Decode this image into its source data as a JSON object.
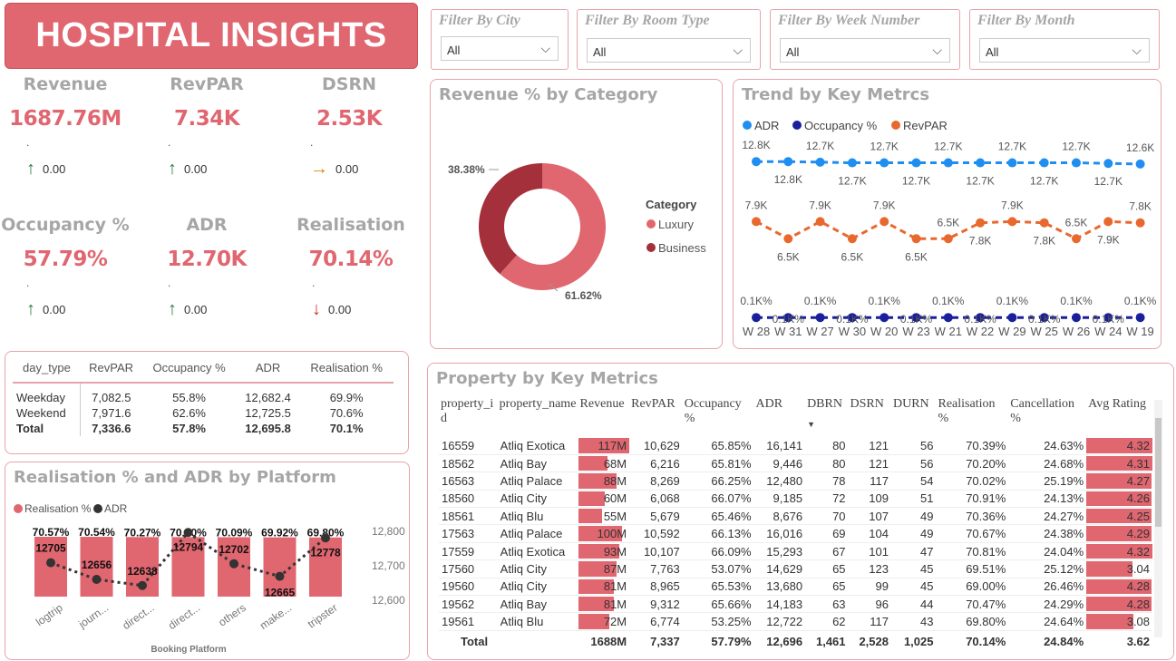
{
  "header": {
    "title": "HOSPITAL INSIGHTS"
  },
  "colors": {
    "accent": "#e06670",
    "dark": "#a3303b",
    "up": "#2e7d4a",
    "flat": "#d68a1e",
    "down": "#d32f2f",
    "adr": "#1f8ef1",
    "occupancy": "#1a1f9c",
    "revpar": "#e8682e"
  },
  "kpis": [
    {
      "label": "Revenue",
      "value": "1687.76M",
      "dot": ".",
      "trend": "up",
      "trend_icon": "arrow-up-icon",
      "change": "0.00"
    },
    {
      "label": "RevPAR",
      "value": "7.34K",
      "dot": ".",
      "trend": "up",
      "trend_icon": "arrow-up-icon",
      "change": "0.00"
    },
    {
      "label": "DSRN",
      "value": "2.53K",
      "dot": ".",
      "trend": "flat",
      "trend_icon": "arrow-right-icon",
      "change": "0.00"
    },
    {
      "label": "Occupancy %",
      "value": "57.79%",
      "dot": ".",
      "trend": "up",
      "trend_icon": "arrow-up-icon",
      "change": "0.00"
    },
    {
      "label": "ADR",
      "value": "12.70K",
      "dot": ".",
      "trend": "up",
      "trend_icon": "arrow-up-icon",
      "change": "0.00"
    },
    {
      "label": "Realisation",
      "value": "70.14%",
      "dot": ".",
      "trend": "down",
      "trend_icon": "arrow-down-icon",
      "change": "0.00"
    }
  ],
  "filters": [
    {
      "title": "Filter By City",
      "value": "All"
    },
    {
      "title": "Filter By Room Type",
      "value": "All"
    },
    {
      "title": "Filter By Week Number",
      "value": "All"
    },
    {
      "title": "Filter By Month",
      "value": "All"
    }
  ],
  "day_type_table": {
    "columns": [
      "day_type",
      "RevPAR",
      "Occupancy %",
      "ADR",
      "Realisation %"
    ],
    "rows": [
      [
        "Weekday",
        "7,082.5",
        "55.8%",
        "12,682.4",
        "69.9%"
      ],
      [
        "Weekend",
        "7,971.6",
        "62.6%",
        "12,725.5",
        "70.6%"
      ]
    ],
    "total": [
      "Total",
      "7,336.6",
      "57.8%",
      "12,695.8",
      "70.1%"
    ]
  },
  "chart_data": [
    {
      "id": "category",
      "type": "pie",
      "title": "Revenue % by Category",
      "legend_title": "Category",
      "legend_position": "right",
      "slices": [
        {
          "name": "Luxury",
          "value": 61.62,
          "label": "61.62%"
        },
        {
          "name": "Business",
          "value": 38.38,
          "label": "38.38%"
        }
      ]
    },
    {
      "id": "trend",
      "type": "line",
      "title": "Trend by Key Metrcs",
      "legend_position": "top-left",
      "categories": [
        "W 28",
        "W 31",
        "W 27",
        "W 30",
        "W 20",
        "W 23",
        "W 21",
        "W 22",
        "W 29",
        "W 25",
        "W 26",
        "W 24",
        "W 19"
      ],
      "series": [
        {
          "name": "ADR",
          "values": [
            12.8,
            12.8,
            12.75,
            12.7,
            12.7,
            12.7,
            12.7,
            12.7,
            12.7,
            12.7,
            12.7,
            12.65,
            12.6
          ],
          "labels": [
            "12.8K",
            "12.8K",
            "12.7K",
            "12.7K",
            "12.7K",
            "12.7K",
            "12.7K",
            "12.7K",
            "12.7K",
            "12.7K",
            "12.7K",
            "12.7K",
            "12.6K"
          ]
        },
        {
          "name": "Occupancy %",
          "values": [
            0.06,
            0.06,
            0.06,
            0.06,
            0.06,
            0.06,
            0.06,
            0.06,
            0.06,
            0.06,
            0.06,
            0.06,
            0.06
          ],
          "labels": [
            "0.1K%",
            "0.1K%",
            "0.1K%",
            "0.1K%",
            "0.1K%",
            "0.1K%",
            "0.1K%",
            "0.1K%",
            "0.1K%",
            "0.1K%",
            "0.1K%",
            "0.1K%",
            "0.1K%"
          ]
        },
        {
          "name": "RevPAR",
          "values": [
            7.9,
            6.5,
            7.9,
            6.5,
            7.9,
            6.5,
            6.5,
            7.8,
            7.9,
            7.8,
            6.5,
            7.9,
            7.8
          ],
          "labels": [
            "7.9K",
            "6.5K",
            "7.9K",
            "6.5K",
            "7.9K",
            "6.5K",
            "6.5K",
            "7.8K",
            "7.9K",
            "7.8K",
            "6.5K",
            "7.9K",
            "7.8K"
          ]
        }
      ],
      "yunit": "K"
    },
    {
      "id": "platform",
      "type": "bar",
      "title": "Realisation % and ADR by Platform",
      "xlabel": "Booking Platform",
      "legend_position": "top-left",
      "categories": [
        "logtrip",
        "journ...",
        "direct...",
        "direct...",
        "others",
        "make...",
        "tripster"
      ],
      "series": [
        {
          "name": "Realisation %",
          "values": [
            70.57,
            70.54,
            70.27,
            70.2,
            70.09,
            69.92,
            69.8
          ],
          "labels": [
            "70.57%",
            "70.54%",
            "70.27%",
            "70.20%",
            "70.09%",
            "69.92%",
            "69.80%"
          ]
        },
        {
          "name": "ADR",
          "values": [
            12705,
            12656,
            12638,
            12794,
            12702,
            12665,
            12778
          ],
          "labels": [
            "12705",
            "12656",
            "12638",
            "12794",
            "12702",
            "12665",
            "12778"
          ]
        }
      ],
      "y2_ticks": [
        "12,800",
        "12,700",
        "12,600"
      ],
      "y2lim": [
        12600,
        12800
      ]
    }
  ],
  "property_table": {
    "title": "Property by Key Metrics",
    "columns": [
      "property_id",
      "property_name",
      "Revenue",
      "RevPAR",
      "Occupancy %",
      "ADR",
      "DBRN",
      "DSRN",
      "DURN",
      "Realisation %",
      "Cancellation %",
      "Avg Rating"
    ],
    "sort_icon": "sort-desc-icon",
    "rows": [
      [
        "16559",
        "Atliq Exotica",
        "117M",
        "10,629",
        "65.85%",
        "16,141",
        "80",
        "121",
        "56",
        "70.39%",
        "24.63%",
        "4.32"
      ],
      [
        "18562",
        "Atliq Bay",
        "68M",
        "6,216",
        "65.81%",
        "9,446",
        "80",
        "121",
        "56",
        "70.20%",
        "24.68%",
        "4.31"
      ],
      [
        "16563",
        "Atliq Palace",
        "88M",
        "8,269",
        "66.25%",
        "12,480",
        "78",
        "117",
        "54",
        "70.02%",
        "25.19%",
        "4.27"
      ],
      [
        "18560",
        "Atliq City",
        "60M",
        "6,068",
        "66.07%",
        "9,185",
        "72",
        "109",
        "51",
        "70.91%",
        "24.13%",
        "4.26"
      ],
      [
        "18561",
        "Atliq Blu",
        "55M",
        "5,679",
        "65.46%",
        "8,676",
        "70",
        "107",
        "49",
        "70.36%",
        "24.27%",
        "4.25"
      ],
      [
        "17563",
        "Atliq Palace",
        "100M",
        "10,592",
        "66.13%",
        "16,016",
        "69",
        "104",
        "49",
        "70.67%",
        "24.38%",
        "4.29"
      ],
      [
        "17559",
        "Atliq Exotica",
        "93M",
        "10,107",
        "66.09%",
        "15,293",
        "67",
        "101",
        "47",
        "70.81%",
        "24.04%",
        "4.32"
      ],
      [
        "17560",
        "Atliq City",
        "87M",
        "7,763",
        "53.07%",
        "14,629",
        "65",
        "123",
        "45",
        "69.51%",
        "25.12%",
        "3.04"
      ],
      [
        "19560",
        "Atliq City",
        "81M",
        "8,965",
        "65.53%",
        "13,680",
        "65",
        "99",
        "45",
        "69.00%",
        "26.46%",
        "4.28"
      ],
      [
        "19562",
        "Atliq Bay",
        "81M",
        "9,312",
        "65.66%",
        "14,183",
        "63",
        "96",
        "44",
        "70.47%",
        "24.29%",
        "4.28"
      ],
      [
        "19561",
        "Atliq Blu",
        "72M",
        "6,774",
        "53.25%",
        "12,722",
        "62",
        "117",
        "43",
        "69.80%",
        "24.64%",
        "3.08"
      ]
    ],
    "total": [
      "Total",
      "",
      "1688M",
      "7,337",
      "57.79%",
      "12,696",
      "1,461",
      "2,528",
      "1,025",
      "70.14%",
      "24.84%",
      "3.62"
    ]
  }
}
